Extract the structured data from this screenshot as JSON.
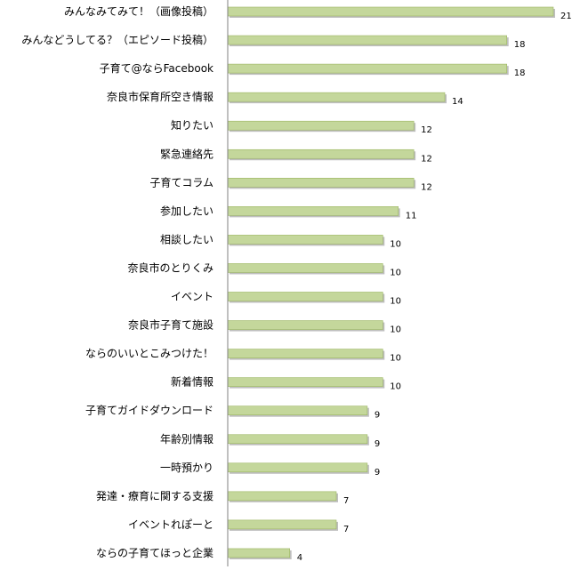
{
  "chart_data": {
    "type": "bar",
    "orientation": "horizontal",
    "categories": [
      "みんなみてみて！（画像投稿）",
      "みんなどうしてる？（エピソード投稿）",
      "子育て@ならFacebook",
      "奈良市保育所空き情報",
      "知りたい",
      "緊急連絡先",
      "子育てコラム",
      "参加したい",
      "相談したい",
      "奈良市のとりくみ",
      "イベント",
      "奈良市子育て施設",
      "ならのいいとこみつけた！",
      "新着情報",
      "子育てガイドダウンロード",
      "年齢別情報",
      "一時預かり",
      "発達・療育に関する支援",
      "イベントれぽーと",
      "ならの子育てほっと企業"
    ],
    "values": [
      21,
      18,
      18,
      14,
      12,
      12,
      12,
      11,
      10,
      10,
      10,
      10,
      10,
      10,
      9,
      9,
      9,
      7,
      7,
      4
    ],
    "data_labels": [
      "21",
      "18",
      "18",
      "14",
      "12",
      "12",
      "12",
      "11",
      "10",
      "10",
      "10",
      "10",
      "10",
      "10",
      "9",
      "9",
      "9",
      "7",
      "7",
      "4"
    ],
    "xlim": [
      0,
      21
    ],
    "grid": false,
    "legend": "none",
    "colors": {
      "bar_fill": "#c4d79b",
      "bar_stroke": "#9bb560",
      "bar_shadow": "#bfbfbf",
      "axis": "#808080"
    }
  }
}
